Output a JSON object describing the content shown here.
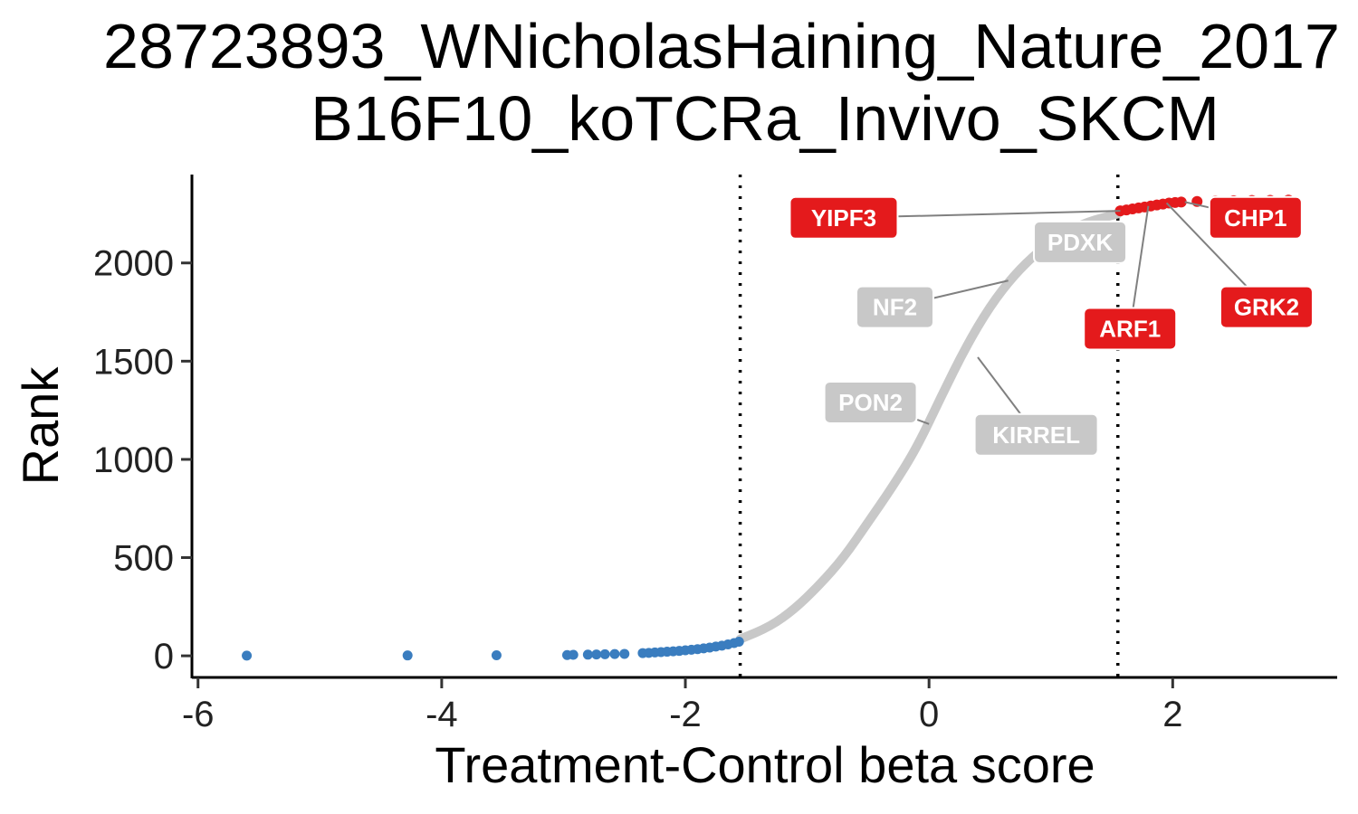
{
  "chart_data": {
    "type": "scatter",
    "title_lines": [
      "28723893_WNicholasHaining_Nature_2017",
      "B16F10_koTCRa_Invivo_SKCM"
    ],
    "xlabel": "Treatment-Control beta score",
    "ylabel": "Rank",
    "xlim": [
      -6.05,
      3.35
    ],
    "ylim": [
      -110,
      2450
    ],
    "x_ticks": [
      -6,
      -4,
      -2,
      0,
      2
    ],
    "x_tick_labels": [
      "-6",
      "-4",
      "-2",
      "0",
      "2"
    ],
    "y_ticks": [
      0,
      500,
      1000,
      1500,
      2000
    ],
    "y_tick_labels": [
      "0",
      "500",
      "1000",
      "1500",
      "2000"
    ],
    "cutoffs": [
      -1.55,
      1.55
    ],
    "grid": false,
    "legend": "none",
    "colors": {
      "down": "#3a7dbf",
      "neutral": "#c8c8c8",
      "up": "#e41a1c",
      "connector": "#808080"
    },
    "neutral_curve": [
      [
        -1.55,
        85
      ],
      [
        -1.3,
        150
      ],
      [
        -1.1,
        240
      ],
      [
        -0.9,
        360
      ],
      [
        -0.7,
        500
      ],
      [
        -0.5,
        680
      ],
      [
        -0.3,
        860
      ],
      [
        -0.1,
        1060
      ],
      [
        0.1,
        1320
      ],
      [
        0.3,
        1570
      ],
      [
        0.5,
        1780
      ],
      [
        0.7,
        1940
      ],
      [
        0.9,
        2060
      ],
      [
        1.1,
        2150
      ],
      [
        1.3,
        2210
      ],
      [
        1.55,
        2250
      ]
    ],
    "down_points": [
      [
        -5.6,
        1
      ],
      [
        -4.28,
        2
      ],
      [
        -3.55,
        3
      ],
      [
        -2.97,
        4
      ],
      [
        -2.92,
        5
      ],
      [
        -2.8,
        6
      ],
      [
        -2.73,
        7
      ],
      [
        -2.66,
        8
      ],
      [
        -2.58,
        9
      ],
      [
        -2.5,
        10
      ],
      [
        -2.35,
        14
      ],
      [
        -2.3,
        15
      ],
      [
        -2.25,
        17
      ],
      [
        -2.2,
        19
      ],
      [
        -2.15,
        21
      ],
      [
        -2.1,
        23
      ],
      [
        -2.05,
        25
      ],
      [
        -2.0,
        28
      ],
      [
        -1.95,
        31
      ],
      [
        -1.9,
        34
      ],
      [
        -1.85,
        38
      ],
      [
        -1.8,
        42
      ],
      [
        -1.75,
        47
      ],
      [
        -1.7,
        52
      ],
      [
        -1.65,
        58
      ],
      [
        -1.6,
        65
      ],
      [
        -1.56,
        72
      ]
    ],
    "up_points": [
      [
        1.57,
        2265
      ],
      [
        1.62,
        2270
      ],
      [
        1.67,
        2275
      ],
      [
        1.72,
        2280
      ],
      [
        1.77,
        2285
      ],
      [
        1.82,
        2290
      ],
      [
        1.87,
        2295
      ],
      [
        1.92,
        2300
      ],
      [
        1.97,
        2305
      ],
      [
        2.02,
        2308
      ],
      [
        2.07,
        2310
      ],
      [
        2.2,
        2313
      ],
      [
        2.35,
        2315
      ],
      [
        2.5,
        2317
      ],
      [
        2.65,
        2318
      ],
      [
        2.8,
        2319
      ],
      [
        2.95,
        2320
      ]
    ],
    "labels": [
      {
        "text": "YIPF3",
        "group": "up",
        "point": [
          1.57,
          2265
        ],
        "pos": [
          -0.7,
          2230
        ]
      },
      {
        "text": "CHP1",
        "group": "up",
        "point": [
          2.1,
          2310
        ],
        "pos": [
          2.68,
          2230
        ]
      },
      {
        "text": "ARF1",
        "group": "up",
        "point": [
          1.8,
          2290
        ],
        "pos": [
          1.65,
          1665
        ]
      },
      {
        "text": "GRK2",
        "group": "up",
        "point": [
          1.95,
          2305
        ],
        "pos": [
          2.77,
          1775
        ]
      },
      {
        "text": "PDXK",
        "group": "neutral",
        "point": [
          1.12,
          2150
        ],
        "pos": [
          1.24,
          2105
        ]
      },
      {
        "text": "NF2",
        "group": "neutral",
        "point": [
          0.65,
          1910
        ],
        "pos": [
          -0.28,
          1775
        ]
      },
      {
        "text": "PON2",
        "group": "neutral",
        "point": [
          0.0,
          1180
        ],
        "pos": [
          -0.48,
          1290
        ]
      },
      {
        "text": "KIRREL",
        "group": "neutral",
        "point": [
          0.4,
          1520
        ],
        "pos": [
          0.88,
          1125
        ]
      }
    ]
  }
}
